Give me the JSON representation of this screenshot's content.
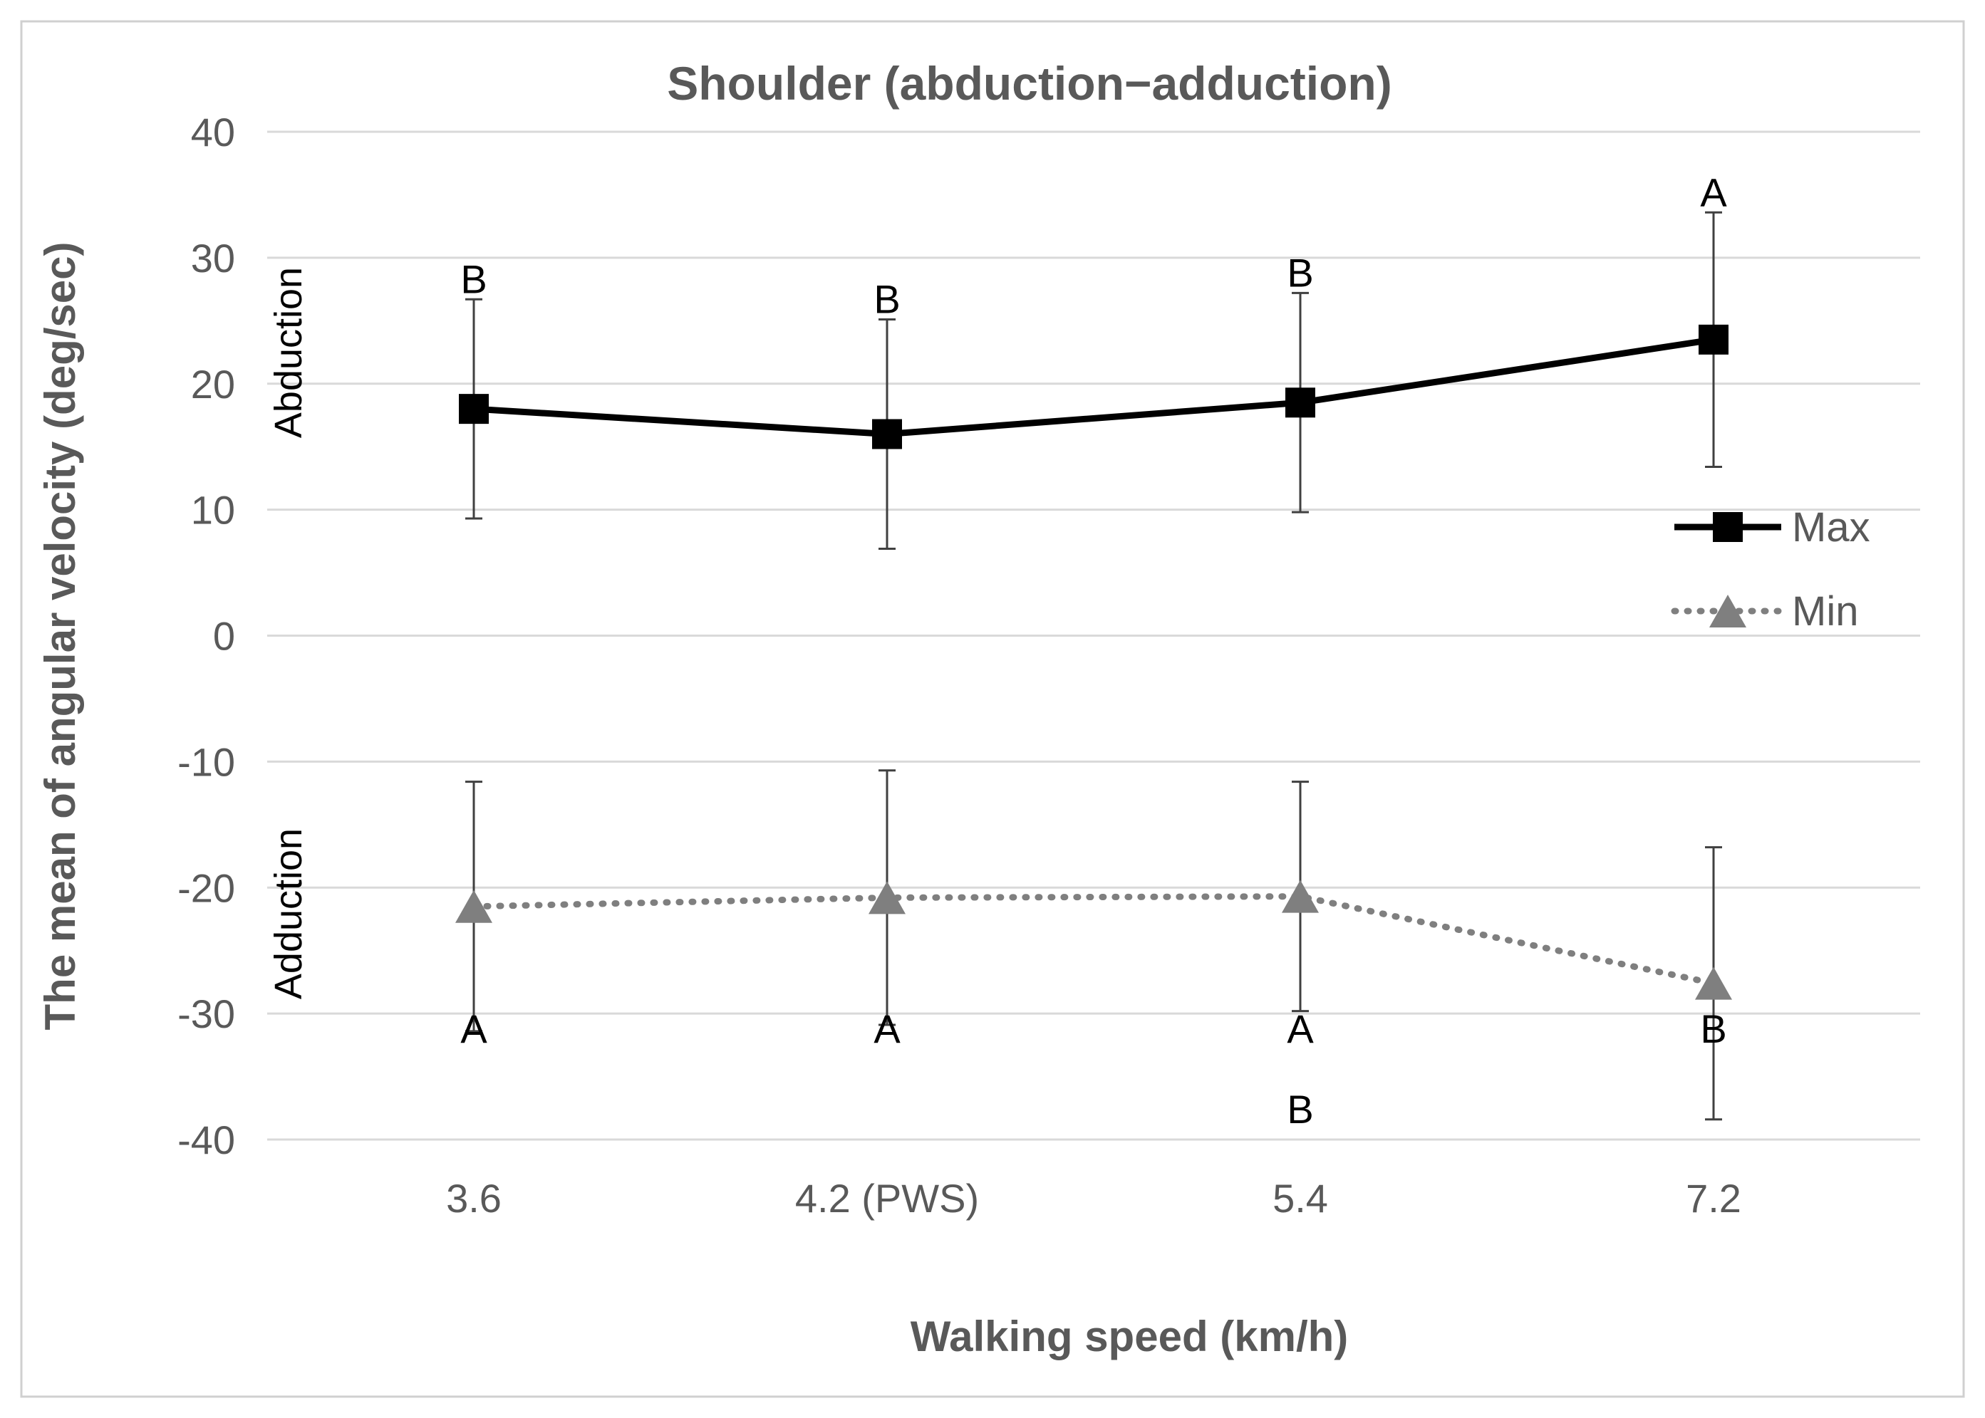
{
  "chart_data": {
    "type": "line",
    "title": "Shoulder (abduction−adduction)",
    "xlabel": "Walking speed (km/h)",
    "ylabel": "The mean of angular velocity (deg/sec)",
    "categories": [
      "3.6",
      "4.2 (PWS)",
      "5.4",
      "7.2"
    ],
    "ylim": [
      -40,
      40
    ],
    "yticks": [
      40,
      30,
      20,
      10,
      0,
      -10,
      -20,
      -30,
      -40
    ],
    "grid": true,
    "legend_position": "right",
    "region_labels": {
      "upper": "Abduction",
      "lower": "Adduction"
    },
    "series": [
      {
        "name": "Max",
        "style": "solid",
        "marker": "square",
        "color": "#000000",
        "values": [
          18.0,
          16.0,
          18.5,
          23.5
        ],
        "error": [
          8.7,
          9.1,
          8.7,
          10.1
        ],
        "annotations": [
          "B",
          "B",
          "B",
          "A"
        ]
      },
      {
        "name": "Min",
        "style": "dotted",
        "marker": "triangle",
        "color": "#7f7f7f",
        "values": [
          -21.5,
          -20.8,
          -20.7,
          -27.6
        ],
        "error": [
          9.9,
          10.1,
          9.1,
          10.8
        ],
        "annotations": [
          "A",
          "A",
          "A",
          "B"
        ],
        "extra_annotations": [
          {
            "index": 2,
            "text": "B"
          }
        ]
      }
    ]
  }
}
